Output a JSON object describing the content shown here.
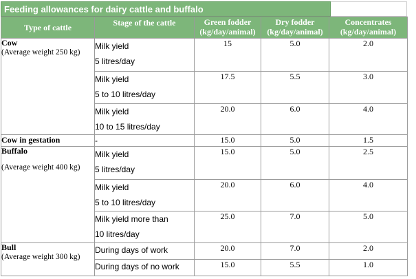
{
  "title": "Feeding allowances for dairy cattle and buffalo",
  "headers": {
    "type": "Type of cattle",
    "stage": "Stage of the cattle",
    "green": "Green fodder",
    "green_unit": "(kg/day/animal)",
    "dry": "Dry fodder",
    "dry_unit": "(kg/day/animal)",
    "conc": "Concentrates",
    "conc_unit": "(kg/day/animal)"
  },
  "groups": {
    "cow": {
      "name": "Cow",
      "weight": "(Average weight 250 kg)"
    },
    "gestation": {
      "name": "Cow in gestation"
    },
    "buffalo": {
      "name": "Buffalo",
      "weight": "(Average weight 400 kg)"
    },
    "bull": {
      "name": "Bull",
      "weight": "(Average weight 300 kg)"
    }
  },
  "rows": [
    {
      "stage_l1": "Milk yield",
      "stage_l2": "5 litres/day",
      "green": "15",
      "dry": "5.0",
      "conc": "2.0"
    },
    {
      "stage_l1": "Milk yield",
      "stage_l2": "5 to 10 litres/day",
      "green": "17.5",
      "dry": "5.5",
      "conc": "3.0"
    },
    {
      "stage_l1": "Milk yield",
      "stage_l2": "10 to 15 litres/day",
      "green": "20.0",
      "dry": "6.0",
      "conc": "4.0"
    },
    {
      "stage_l1": "-",
      "stage_l2": "",
      "green": "15.0",
      "dry": "5.0",
      "conc": "1.5"
    },
    {
      "stage_l1": "Milk yield",
      "stage_l2": "5 litres/day",
      "green": "15.0",
      "dry": "5.0",
      "conc": "2.5"
    },
    {
      "stage_l1": "Milk yield",
      "stage_l2": "5 to 10 litres/day",
      "green": "20.0",
      "dry": "6.0",
      "conc": "4.0"
    },
    {
      "stage_l1": "Milk yield more than",
      "stage_l2": "10  litres/day",
      "green": "25.0",
      "dry": "7.0",
      "conc": "5.0"
    },
    {
      "stage_l1": "During days of work",
      "stage_l2": "",
      "green": "20.0",
      "dry": "7.0",
      "conc": "2.0"
    },
    {
      "stage_l1": "During days of no work",
      "stage_l2": "",
      "green": "15.0",
      "dry": "5.5",
      "conc": "1.0"
    }
  ]
}
